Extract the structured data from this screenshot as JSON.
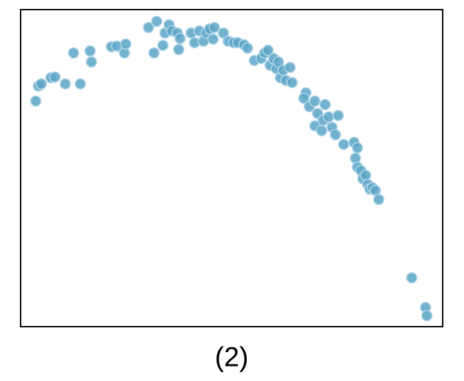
{
  "chart_data": {
    "type": "scatter",
    "xlabel": "(2)",
    "color": "#5ba4c7",
    "xlim": [
      0,
      614
    ],
    "ylim": [
      0,
      461
    ],
    "x": [
      22,
      26,
      30,
      44,
      50,
      65,
      87,
      77,
      101,
      103,
      132,
      140,
      151,
      153,
      186,
      198,
      194,
      207,
      210,
      216,
      220,
      228,
      230,
      232,
      248,
      253,
      260,
      266,
      270,
      275,
      282,
      280,
      295,
      302,
      310,
      316,
      325,
      330,
      340,
      350,
      355,
      360,
      363,
      368,
      372,
      375,
      378,
      382,
      386,
      392,
      395,
      415,
      412,
      420,
      428,
      432,
      440,
      443,
      448,
      428,
      438,
      453,
      462,
      458,
      470,
      485,
      490,
      487,
      490,
      495,
      498,
      502,
      505,
      508,
      512,
      516,
      521,
      569,
      589,
      591
    ],
    "y": [
      328,
      350,
      353,
      362,
      363,
      353,
      353,
      398,
      401,
      385,
      407,
      408,
      398,
      411,
      435,
      444,
      398,
      409,
      427,
      439,
      430,
      427,
      403,
      419,
      427,
      413,
      430,
      415,
      427,
      433,
      435,
      418,
      427,
      415,
      413,
      413,
      410,
      405,
      387,
      390,
      398,
      402,
      380,
      390,
      375,
      385,
      362,
      373,
      358,
      377,
      355,
      340,
      332,
      320,
      328,
      310,
      300,
      323,
      305,
      292,
      285,
      290,
      307,
      279,
      265,
      268,
      260,
      245,
      232,
      227,
      215,
      220,
      207,
      200,
      202,
      198,
      185,
      71,
      28,
      16
    ]
  }
}
